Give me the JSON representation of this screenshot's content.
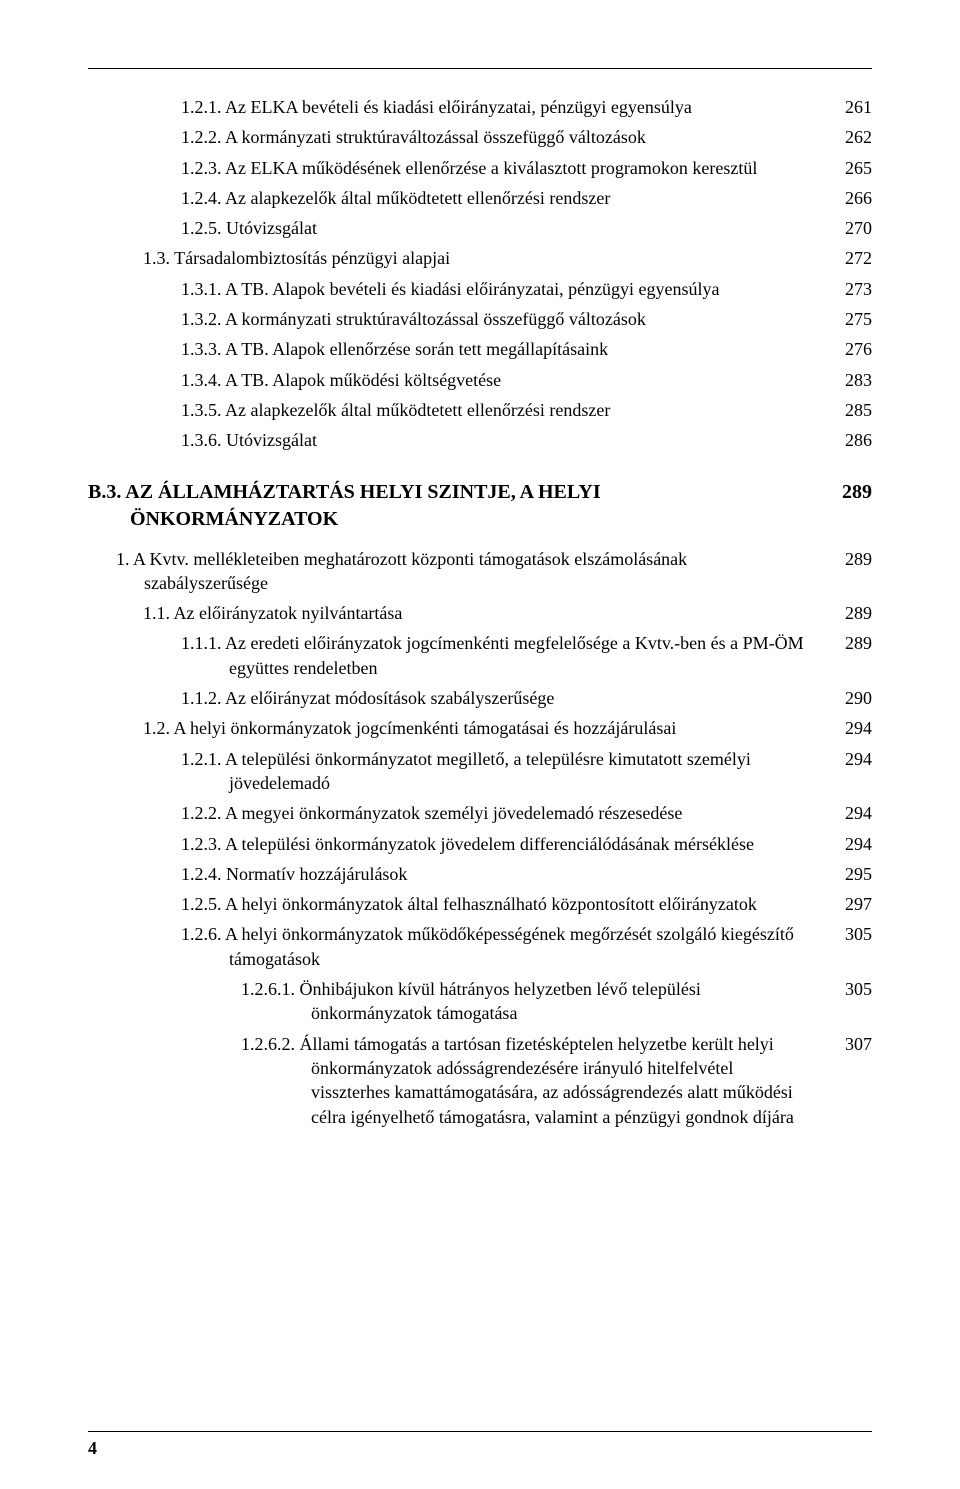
{
  "section_top": [
    {
      "indent": "93",
      "hang": true,
      "num": "1.2.1.",
      "label": "Az ELKA bevételi és kiadási előirányzatai, pénzügyi egyensúlya",
      "page": "261"
    },
    {
      "indent": "93",
      "hang": true,
      "num": "1.2.2.",
      "label": "A kormányzati struktúraváltozással összefüggő változások",
      "page": "262"
    },
    {
      "indent": "93",
      "hang": true,
      "num": "1.2.3.",
      "label": "Az ELKA működésének ellenőrzése a kiválasztott programokon keresztül",
      "page": "265"
    },
    {
      "indent": "93",
      "hang": true,
      "num": "1.2.4.",
      "label": "Az alapkezelők által működtetett ellenőrzési rendszer",
      "page": "266"
    },
    {
      "indent": "93",
      "hang": true,
      "num": "1.2.5.",
      "label": "Utóvizsgálat",
      "page": "270"
    },
    {
      "indent": "55",
      "hang": true,
      "num": "1.3.",
      "label": "Társadalombiztosítás pénzügyi alapjai",
      "page": "272"
    },
    {
      "indent": "93",
      "hang": true,
      "num": "1.3.1.",
      "label": "A TB. Alapok bevételi és kiadási előirányzatai, pénzügyi egyensúlya",
      "page": "273"
    },
    {
      "indent": "93",
      "hang": true,
      "num": "1.3.2.",
      "label": "A kormányzati struktúraváltozással összefüggő változások",
      "page": "275"
    },
    {
      "indent": "93",
      "hang": true,
      "num": "1.3.3.",
      "label": "A TB. Alapok ellenőrzése során tett megállapításaink",
      "page": "276"
    },
    {
      "indent": "93",
      "hang": true,
      "num": "1.3.4.",
      "label": "A TB. Alapok működési költségvetése",
      "page": "283"
    },
    {
      "indent": "93",
      "hang": true,
      "num": "1.3.5.",
      "label": "Az alapkezelők által működtetett ellenőrzési rendszer",
      "page": "285"
    },
    {
      "indent": "93",
      "hang": true,
      "num": "1.3.6.",
      "label": "Utóvizsgálat",
      "page": "286"
    }
  ],
  "heading": {
    "num": "B.3.",
    "label": "AZ ÁLLAMHÁZTARTÁS HELYI SZINTJE, A HELYI ÖNKORMÁNYZATOK",
    "page": "289"
  },
  "section_bottom": [
    {
      "indent": "28",
      "hang": true,
      "num": "1.",
      "label": "A Kvtv. mellékleteiben meghatározott központi támogatások elszámolásának szabályszerűsége",
      "page": "289"
    },
    {
      "indent": "55",
      "hang": true,
      "num": "1.1.",
      "label": "Az előirányzatok nyilvántartása",
      "page": "289"
    },
    {
      "indent": "93",
      "hang": true,
      "num": "1.1.1.",
      "label": "Az eredeti előirányzatok jogcímenkénti megfelelősége a Kvtv.-ben és a PM-ÖM együttes rendeletben",
      "page": "289"
    },
    {
      "indent": "93",
      "hang": true,
      "num": "1.1.2.",
      "label": "Az előirányzat módosítások szabályszerűsége",
      "page": "290"
    },
    {
      "indent": "55",
      "hang": true,
      "num": "1.2.",
      "label": "A helyi önkormányzatok jogcímenkénti támogatásai és hozzájárulásai",
      "page": "294"
    },
    {
      "indent": "93",
      "hang": true,
      "num": "1.2.1.",
      "label": "A települési önkormányzatot megillető, a településre kimutatott személyi jövedelemadó",
      "page": "294"
    },
    {
      "indent": "93",
      "hang": true,
      "num": "1.2.2.",
      "label": "A megyei önkormányzatok személyi jövedelemadó részesedése",
      "page": "294"
    },
    {
      "indent": "93",
      "hang": true,
      "num": "1.2.3.",
      "label": "A települési önkormányzatok jövedelem differenciálódásának mérséklése",
      "page": "294"
    },
    {
      "indent": "93",
      "hang": true,
      "num": "1.2.4.",
      "label": "Normatív hozzájárulások",
      "page": "295"
    },
    {
      "indent": "93",
      "hang": true,
      "num": "1.2.5.",
      "label": "A helyi önkormányzatok által felhasználható központosított előirányzatok",
      "page": "297"
    },
    {
      "indent": "93",
      "hang": true,
      "num": "1.2.6.",
      "label": "A helyi önkormányzatok működőképességének megőrzését szolgáló kiegészítő támogatások",
      "page": "305"
    },
    {
      "indent": "153",
      "hang": true,
      "num": "1.2.6.1.",
      "label": "Önhibájukon kívül hátrányos helyzetben lévő települési önkormányzatok támogatása",
      "page": "305"
    },
    {
      "indent": "153",
      "hang": true,
      "num": "1.2.6.2.",
      "label": "Állami támogatás a tartósan fizetésképtelen helyzetbe került helyi önkormányzatok adósságrendezésére irányuló hitelfelvétel visszterhes kamattámogatására, az adósságrendezés alatt működési célra igényelhető támogatásra, valamint a pénzügyi gondnok díjára",
      "page": "307"
    }
  ],
  "footer": {
    "page_number": "4"
  }
}
